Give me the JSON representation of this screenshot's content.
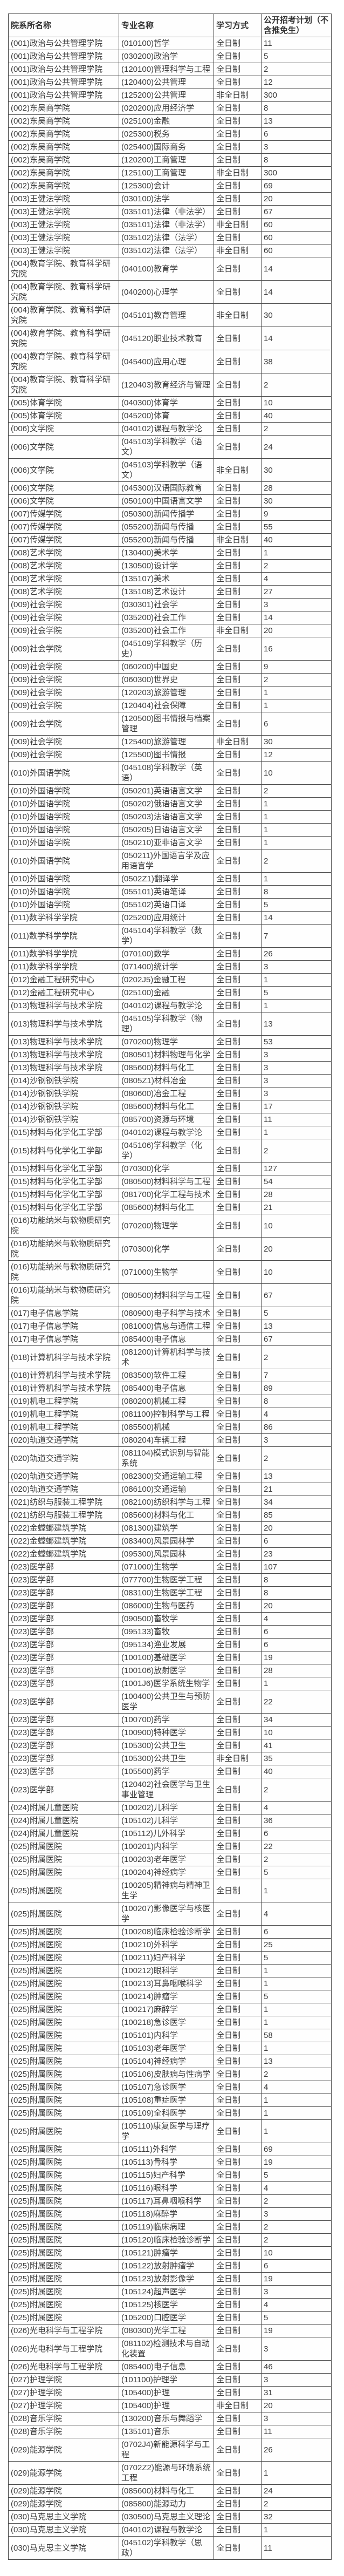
{
  "page": {
    "background": "#ffffff",
    "border_color": "#4a4a4a",
    "text_color": "#3c3c3c"
  },
  "table": {
    "columns": [
      "院系所名称",
      "专业名称",
      "学习方式",
      "公开招考计划（不含推免生）"
    ],
    "column_keys": [
      "department",
      "major",
      "study_mode",
      "plan_count"
    ],
    "study_mode_values": [
      "全日制",
      "非全日制"
    ],
    "rows": [
      [
        "(001)政治与公共管理学院",
        "(010100)哲学",
        "全日制",
        11
      ],
      [
        "(001)政治与公共管理学院",
        "(030200)政治学",
        "全日制",
        5
      ],
      [
        "(001)政治与公共管理学院",
        "(120100)管理科学与工程",
        "全日制",
        2
      ],
      [
        "(001)政治与公共管理学院",
        "(120400)公共管理",
        "全日制",
        12
      ],
      [
        "(001)政治与公共管理学院",
        "(125200)公共管理",
        "非全日制",
        300
      ],
      [
        "(002)东吴商学院",
        "(020200)应用经济学",
        "全日制",
        8
      ],
      [
        "(002)东吴商学院",
        "(025100)金融",
        "全日制",
        13
      ],
      [
        "(002)东吴商学院",
        "(025300)税务",
        "全日制",
        6
      ],
      [
        "(002)东吴商学院",
        "(025400)国际商务",
        "全日制",
        3
      ],
      [
        "(002)东吴商学院",
        "(120200)工商管理",
        "全日制",
        8
      ],
      [
        "(002)东吴商学院",
        "(125100)工商管理",
        "非全日制",
        300
      ],
      [
        "(002)东吴商学院",
        "(125300)会计",
        "全日制",
        69
      ],
      [
        "(003)王健法学院",
        "(030100)法学",
        "全日制",
        20
      ],
      [
        "(003)王健法学院",
        "(035101)法律（非法学）",
        "全日制",
        67
      ],
      [
        "(003)王健法学院",
        "(035101)法律（非法学）",
        "非全日制",
        60
      ],
      [
        "(003)王健法学院",
        "(035102)法律（法学）",
        "全日制",
        60
      ],
      [
        "(003)王健法学院",
        "(035102)法律（法学）",
        "非全日制",
        60
      ],
      [
        "(004)教育学院、教育科学研究院",
        "(040100)教育学",
        "全日制",
        14
      ],
      [
        "(004)教育学院、教育科学研究院",
        "(040200)心理学",
        "全日制",
        14
      ],
      [
        "(004)教育学院、教育科学研究院",
        "(045101)教育管理",
        "非全日制",
        30
      ],
      [
        "(004)教育学院、教育科学研究院",
        "(045120)职业技术教育",
        "全日制",
        14
      ],
      [
        "(004)教育学院、教育科学研究院",
        "(045400)应用心理",
        "全日制",
        38
      ],
      [
        "(004)教育学院、教育科学研究院",
        "(120403)教育经济与管理",
        "全日制",
        2
      ],
      [
        "(005)体育学院",
        "(040300)体育学",
        "全日制",
        10
      ],
      [
        "(005)体育学院",
        "(045200)体育",
        "全日制",
        40
      ],
      [
        "(006)文学院",
        "(040102)课程与教学论",
        "全日制",
        2
      ],
      [
        "(006)文学院",
        "(045103)学科教学（语文）",
        "全日制",
        24
      ],
      [
        "(006)文学院",
        "(045103)学科教学（语文）",
        "非全日制",
        30
      ],
      [
        "(006)文学院",
        "(045300)汉语国际教育",
        "全日制",
        28
      ],
      [
        "(006)文学院",
        "(050100)中国语言文学",
        "全日制",
        30
      ],
      [
        "(007)传媒学院",
        "(050300)新闻传播学",
        "全日制",
        9
      ],
      [
        "(007)传媒学院",
        "(055200)新闻与传播",
        "全日制",
        55
      ],
      [
        "(007)传媒学院",
        "(055200)新闻与传播",
        "非全日制",
        40
      ],
      [
        "(008)艺术学院",
        "(130400)美术学",
        "全日制",
        1
      ],
      [
        "(008)艺术学院",
        "(130500)设计学",
        "全日制",
        2
      ],
      [
        "(008)艺术学院",
        "(135107)美术",
        "全日制",
        4
      ],
      [
        "(008)艺术学院",
        "(135108)艺术设计",
        "全日制",
        27
      ],
      [
        "(009)社会学院",
        "(030301)社会学",
        "全日制",
        3
      ],
      [
        "(009)社会学院",
        "(035200)社会工作",
        "全日制",
        14
      ],
      [
        "(009)社会学院",
        "(035200)社会工作",
        "非全日制",
        20
      ],
      [
        "(009)社会学院",
        "(045109)学科教学（历史）",
        "全日制",
        16
      ],
      [
        "(009)社会学院",
        "(060200)中国史",
        "全日制",
        9
      ],
      [
        "(009)社会学院",
        "(060300)世界史",
        "全日制",
        2
      ],
      [
        "(009)社会学院",
        "(120203)旅游管理",
        "全日制",
        1
      ],
      [
        "(009)社会学院",
        "(120404)社会保障",
        "全日制",
        1
      ],
      [
        "(009)社会学院",
        "(120500)图书情报与档案管理",
        "全日制",
        6
      ],
      [
        "(009)社会学院",
        "(125400)旅游管理",
        "非全日制",
        30
      ],
      [
        "(009)社会学院",
        "(125500)图书情报",
        "全日制",
        12
      ],
      [
        "(010)外国语学院",
        "(045108)学科教学（英语）",
        "全日制",
        10
      ],
      [
        "(010)外国语学院",
        "(050201)英语语言文学",
        "全日制",
        2
      ],
      [
        "(010)外国语学院",
        "(050202)俄语语言文学",
        "全日制",
        1
      ],
      [
        "(010)外国语学院",
        "(050203)法语语言文学",
        "全日制",
        1
      ],
      [
        "(010)外国语学院",
        "(050205)日语语言文学",
        "全日制",
        1
      ],
      [
        "(010)外国语学院",
        "(050210)亚非语言文学",
        "全日制",
        1
      ],
      [
        "(010)外国语学院",
        "(050211)外国语言学及应用语言学",
        "全日制",
        2
      ],
      [
        "(010)外国语学院",
        "(0502Z1)翻译学",
        "全日制",
        1
      ],
      [
        "(010)外国语学院",
        "(055101)英语笔译",
        "全日制",
        8
      ],
      [
        "(010)外国语学院",
        "(055102)英语口译",
        "全日制",
        5
      ],
      [
        "(011)数学科学学院",
        "(025200)应用统计",
        "全日制",
        14
      ],
      [
        "(011)数学科学学院",
        "(045104)学科教学（数学）",
        "全日制",
        7
      ],
      [
        "(011)数学科学学院",
        "(070100)数学",
        "全日制",
        26
      ],
      [
        "(011)数学科学学院",
        "(071400)统计学",
        "全日制",
        3
      ],
      [
        "(012)金融工程研究中心",
        "(0202J5)金融工程",
        "全日制",
        1
      ],
      [
        "(012)金融工程研究中心",
        "(025100)金融",
        "全日制",
        5
      ],
      [
        "(013)物理科学与技术学院",
        "(040102)课程与教学论",
        "全日制",
        1
      ],
      [
        "(013)物理科学与技术学院",
        "(045105)学科教学（物理）",
        "全日制",
        13
      ],
      [
        "(013)物理科学与技术学院",
        "(070200)物理学",
        "全日制",
        53
      ],
      [
        "(013)物理科学与技术学院",
        "(080501)材料物理与化学",
        "全日制",
        3
      ],
      [
        "(013)物理科学与技术学院",
        "(085600)材料与化工",
        "全日制",
        3
      ],
      [
        "(014)沙钢钢铁学院",
        "(0805Z1)材料冶金",
        "全日制",
        3
      ],
      [
        "(014)沙钢钢铁学院",
        "(080600)冶金工程",
        "全日制",
        3
      ],
      [
        "(014)沙钢钢铁学院",
        "(085600)材料与化工",
        "全日制",
        17
      ],
      [
        "(014)沙钢钢铁学院",
        "(085700)资源与环境",
        "全日制",
        11
      ],
      [
        "(015)材料与化学化工学部",
        "(040102)课程与教学论",
        "全日制",
        1
      ],
      [
        "(015)材料与化学化工学部",
        "(045106)学科教学（化学）",
        "全日制",
        2
      ],
      [
        "(015)材料与化学化工学部",
        "(070300)化学",
        "全日制",
        127
      ],
      [
        "(015)材料与化学化工学部",
        "(080500)材料科学与工程",
        "全日制",
        54
      ],
      [
        "(015)材料与化学化工学部",
        "(081700)化学工程与技术",
        "全日制",
        28
      ],
      [
        "(015)材料与化学化工学部",
        "(085600)材料与化工",
        "全日制",
        21
      ],
      [
        "(016)功能纳米与软物质研究院",
        "(070200)物理学",
        "全日制",
        10
      ],
      [
        "(016)功能纳米与软物质研究院",
        "(070300)化学",
        "全日制",
        20
      ],
      [
        "(016)功能纳米与软物质研究院",
        "(071000)生物学",
        "全日制",
        10
      ],
      [
        "(016)功能纳米与软物质研究院",
        "(080500)材料科学与工程",
        "全日制",
        67
      ],
      [
        "(017)电子信息学院",
        "(080900)电子科学与技术",
        "全日制",
        5
      ],
      [
        "(017)电子信息学院",
        "(081000)信息与通信工程",
        "全日制",
        13
      ],
      [
        "(017)电子信息学院",
        "(085400)电子信息",
        "全日制",
        67
      ],
      [
        "(018)计算机科学与技术学院",
        "(081200)计算机科学与技术",
        "全日制",
        2
      ],
      [
        "(018)计算机科学与技术学院",
        "(083500)软件工程",
        "全日制",
        7
      ],
      [
        "(018)计算机科学与技术学院",
        "(085400)电子信息",
        "全日制",
        89
      ],
      [
        "(019)机电工程学院",
        "(080200)机械工程",
        "全日制",
        8
      ],
      [
        "(019)机电工程学院",
        "(081100)控制科学与工程",
        "全日制",
        4
      ],
      [
        "(019)机电工程学院",
        "(085500)机械",
        "全日制",
        86
      ],
      [
        "(020)轨道交通学院",
        "(080204)车辆工程",
        "全日制",
        3
      ],
      [
        "(020)轨道交通学院",
        "(081104)模式识别与智能系统",
        "全日制",
        2
      ],
      [
        "(020)轨道交通学院",
        "(082300)交通运输工程",
        "全日制",
        13
      ],
      [
        "(020)轨道交通学院",
        "(086100)交通运输",
        "全日制",
        21
      ],
      [
        "(021)纺织与服装工程学院",
        "(082100)纺织科学与工程",
        "全日制",
        34
      ],
      [
        "(021)纺织与服装工程学院",
        "(085600)材料与化工",
        "全日制",
        85
      ],
      [
        "(022)金螳螂建筑学院",
        "(081300)建筑学",
        "全日制",
        20
      ],
      [
        "(022)金螳螂建筑学院",
        "(083400)风景园林学",
        "全日制",
        6
      ],
      [
        "(022)金螳螂建筑学院",
        "(095300)风景园林",
        "全日制",
        23
      ],
      [
        "(023)医学部",
        "(071000)生物学",
        "全日制",
        107
      ],
      [
        "(023)医学部",
        "(077700)生物医学工程",
        "全日制",
        8
      ],
      [
        "(023)医学部",
        "(083100)生物医学工程",
        "全日制",
        8
      ],
      [
        "(023)医学部",
        "(086000)生物与医药",
        "全日制",
        20
      ],
      [
        "(023)医学部",
        "(090500)畜牧学",
        "全日制",
        4
      ],
      [
        "(023)医学部",
        "(095133)畜牧",
        "全日制",
        6
      ],
      [
        "(023)医学部",
        "(095134)渔业发展",
        "全日制",
        6
      ],
      [
        "(023)医学部",
        "(100100)基础医学",
        "全日制",
        19
      ],
      [
        "(023)医学部",
        "(100106)放射医学",
        "全日制",
        28
      ],
      [
        "(023)医学部",
        "(1001J6)医学系统生物学",
        "全日制",
        1
      ],
      [
        "(023)医学部",
        "(100400)公共卫生与预防医学",
        "全日制",
        22
      ],
      [
        "(023)医学部",
        "(100700)药学",
        "全日制",
        34
      ],
      [
        "(023)医学部",
        "(100900)特种医学",
        "全日制",
        10
      ],
      [
        "(023)医学部",
        "(105300)公共卫生",
        "全日制",
        41
      ],
      [
        "(023)医学部",
        "(105300)公共卫生",
        "非全日制",
        35
      ],
      [
        "(023)医学部",
        "(105500)药学",
        "全日制",
        40
      ],
      [
        "(023)医学部",
        "(120402)社会医学与卫生事业管理",
        "全日制",
        2
      ],
      [
        "(024)附属儿童医院",
        "(100202)儿科学",
        "全日制",
        4
      ],
      [
        "(024)附属儿童医院",
        "(105102)儿科学",
        "全日制",
        36
      ],
      [
        "(024)附属儿童医院",
        "(105112)儿外科学",
        "全日制",
        6
      ],
      [
        "(025)附属医院",
        "(100201)内科学",
        "全日制",
        22
      ],
      [
        "(025)附属医院",
        "(100203)老年医学",
        "全日制",
        2
      ],
      [
        "(025)附属医院",
        "(100204)神经病学",
        "全日制",
        5
      ],
      [
        "(025)附属医院",
        "(100205)精神病与精神卫生学",
        "全日制",
        1
      ],
      [
        "(025)附属医院",
        "(100207)影像医学与核医学",
        "全日制",
        4
      ],
      [
        "(025)附属医院",
        "(100208)临床检验诊断学",
        "全日制",
        6
      ],
      [
        "(025)附属医院",
        "(100210)外科学",
        "全日制",
        25
      ],
      [
        "(025)附属医院",
        "(100211)妇产科学",
        "全日制",
        5
      ],
      [
        "(025)附属医院",
        "(100212)眼科学",
        "全日制",
        1
      ],
      [
        "(025)附属医院",
        "(100213)耳鼻咽喉科学",
        "全日制",
        1
      ],
      [
        "(025)附属医院",
        "(100214)肿瘤学",
        "全日制",
        5
      ],
      [
        "(025)附属医院",
        "(100217)麻醉学",
        "全日制",
        1
      ],
      [
        "(025)附属医院",
        "(100218)急诊医学",
        "全日制",
        1
      ],
      [
        "(025)附属医院",
        "(105101)内科学",
        "全日制",
        58
      ],
      [
        "(025)附属医院",
        "(105103)老年医学",
        "全日制",
        1
      ],
      [
        "(025)附属医院",
        "(105104)神经病学",
        "全日制",
        13
      ],
      [
        "(025)附属医院",
        "(105106)皮肤病与性病学",
        "全日制",
        2
      ],
      [
        "(025)附属医院",
        "(105107)急诊医学",
        "全日制",
        4
      ],
      [
        "(025)附属医院",
        "(105108)重症医学",
        "全日制",
        1
      ],
      [
        "(025)附属医院",
        "(105109)全科医学",
        "全日制",
        1
      ],
      [
        "(025)附属医院",
        "(105110)康复医学与理疗学",
        "全日制",
        1
      ],
      [
        "(025)附属医院",
        "(105111)外科学",
        "全日制",
        69
      ],
      [
        "(025)附属医院",
        "(105113)骨科学",
        "全日制",
        19
      ],
      [
        "(025)附属医院",
        "(105115)妇产科学",
        "全日制",
        5
      ],
      [
        "(025)附属医院",
        "(105116)眼科学",
        "全日制",
        4
      ],
      [
        "(025)附属医院",
        "(105117)耳鼻咽喉科学",
        "全日制",
        2
      ],
      [
        "(025)附属医院",
        "(105118)麻醉学",
        "全日制",
        3
      ],
      [
        "(025)附属医院",
        "(105119)临床病理",
        "全日制",
        2
      ],
      [
        "(025)附属医院",
        "(105120)临床检验诊断学",
        "全日制",
        2
      ],
      [
        "(025)附属医院",
        "(105121)肿瘤学",
        "全日制",
        10
      ],
      [
        "(025)附属医院",
        "(105122)放射肿瘤学",
        "全日制",
        6
      ],
      [
        "(025)附属医院",
        "(105123)放射影像学",
        "全日制",
        19
      ],
      [
        "(025)附属医院",
        "(105124)超声医学",
        "全日制",
        3
      ],
      [
        "(025)附属医院",
        "(105125)核医学",
        "全日制",
        4
      ],
      [
        "(025)附属医院",
        "(105200)口腔医学",
        "全日制",
        5
      ],
      [
        "(026)光电科学与工程学院",
        "(080300)光学工程",
        "全日制",
        19
      ],
      [
        "(026)光电科学与工程学院",
        "(081102)检测技术与自动化装置",
        "全日制",
        3
      ],
      [
        "(026)光电科学与工程学院",
        "(085400)电子信息",
        "全日制",
        46
      ],
      [
        "(027)护理学院",
        "(101100)护理学",
        "全日制",
        3
      ],
      [
        "(027)护理学院",
        "(105400)护理",
        "全日制",
        31
      ],
      [
        "(027)护理学院",
        "(105400)护理",
        "非全日制",
        20
      ],
      [
        "(028)音乐学院",
        "(130200)音乐与舞蹈学",
        "全日制",
        3
      ],
      [
        "(028)音乐学院",
        "(135101)音乐",
        "全日制",
        11
      ],
      [
        "(029)能源学院",
        "(0702J4)新能源科学与工程",
        "全日制",
        26
      ],
      [
        "(029)能源学院",
        "(0702Z2)能源与环境系统工程",
        "全日制",
        1
      ],
      [
        "(029)能源学院",
        "(085600)材料与化工",
        "全日制",
        24
      ],
      [
        "(029)能源学院",
        "(085800)能源动力",
        "全日制",
        2
      ],
      [
        "(030)马克思主义学院",
        "(030500)马克思主义理论",
        "全日制",
        32
      ],
      [
        "(030)马克思主义学院",
        "(040102)课程与教学论",
        "全日制",
        1
      ],
      [
        "(030)马克思主义学院",
        "(045102)学科教学（思政）",
        "全日制",
        11
      ]
    ]
  }
}
